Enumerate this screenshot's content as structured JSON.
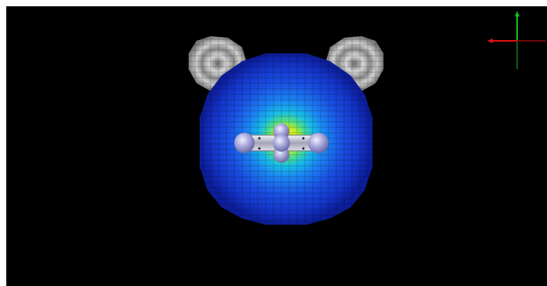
{
  "viewport": {
    "background": "#000000",
    "frame": "#ffffff"
  },
  "scene": {
    "description_visible": false,
    "molecule": {
      "atoms": [
        {
          "name": "atom-left",
          "color": "#b4b4e6"
        },
        {
          "name": "atom-center-top",
          "color": "#b4b4e6"
        },
        {
          "name": "atom-center",
          "color": "#b4b4e6"
        },
        {
          "name": "atom-center-bottom",
          "color": "#b4b4e6"
        },
        {
          "name": "atom-right",
          "color": "#b4b4e6"
        }
      ],
      "bond_color": "#c8c8d4"
    },
    "isosurface": {
      "colormap": [
        "#0a1aa0",
        "#1636d6",
        "#1e66f0",
        "#18a6f0",
        "#20d2c0",
        "#8ce83a",
        "#f2f21a"
      ]
    },
    "lobes": {
      "color": "#a8a8a8"
    }
  },
  "axes": {
    "x_color": "#e01010",
    "y_color": "#10c020",
    "z_color": "#106020"
  }
}
